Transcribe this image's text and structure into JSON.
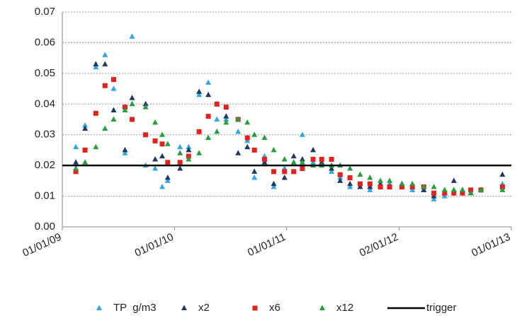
{
  "chart_data": {
    "type": "scatter",
    "xlim": [
      "01/01/09",
      "01/01/13"
    ],
    "xticks": [
      "01/01/09",
      "01/01/10",
      "01/01/11",
      "02/01/12",
      "01/01/13"
    ],
    "ylim": [
      0,
      0.07
    ],
    "yticks": [
      {
        "value": 0,
        "label": "0.00"
      },
      {
        "value": 0.01,
        "label": "0.01"
      },
      {
        "value": 0.02,
        "label": "0.02"
      },
      {
        "value": 0.03,
        "label": "0.03"
      },
      {
        "value": 0.04,
        "label": "0.04"
      },
      {
        "value": 0.05,
        "label": "0.05"
      },
      {
        "value": 0.06,
        "label": "0.06"
      },
      {
        "value": 0.07,
        "label": "0.07"
      }
    ],
    "grid": true,
    "legend": "bottom",
    "series": [
      {
        "name": "TP  g/m3",
        "color": "#2ea8e8",
        "marker": "triangle",
        "x": [
          "14/02/09",
          "16/03/09",
          "20/04/09",
          "20/05/09",
          "17/06/09",
          "24/07/09",
          "16/08/09",
          "29/09/09",
          "30/10/09",
          "22/11/09",
          "10/12/09",
          "19/01/10",
          "16/02/10",
          "22/03/10",
          "21/04/10",
          "19/05/10",
          "18/06/10",
          "27/07/10",
          "26/08/10",
          "18/09/10",
          "21/10/10",
          "20/11/10",
          "25/12/10",
          "24/01/11",
          "21/02/11",
          "28/03/11",
          "25/04/11",
          "27/05/11",
          "24/06/11",
          "26/07/11",
          "28/08/11",
          "29/09/11",
          "02/11/11",
          "02/12/11",
          "11/01/12",
          "14/02/12",
          "22/03/12",
          "24/04/12",
          "29/05/12",
          "28/06/12",
          "26/07/12",
          "22/08/12",
          "24/09/12",
          "03/12/12"
        ],
        "values": [
          0.026,
          0.033,
          0.052,
          0.056,
          0.045,
          0.024,
          0.062,
          0.02,
          0.019,
          0.013,
          0.015,
          0.026,
          0.026,
          0.043,
          0.047,
          0.035,
          0.035,
          0.031,
          0.028,
          0.016,
          0.023,
          0.013,
          0.019,
          0.021,
          0.03,
          0.021,
          0.02,
          0.018,
          0.016,
          0.013,
          0.013,
          0.012,
          0.013,
          0.014,
          0.013,
          0.012,
          0.012,
          0.009,
          0.01,
          0.012,
          0.011,
          0.011,
          0.012,
          0.014
        ]
      },
      {
        "name": "x2",
        "color": "#1f3864",
        "marker": "triangle",
        "x": [
          "14/02/09",
          "16/03/09",
          "20/04/09",
          "20/05/09",
          "17/06/09",
          "24/07/09",
          "16/08/09",
          "29/09/09",
          "30/10/09",
          "22/11/09",
          "10/12/09",
          "19/01/10",
          "16/02/10",
          "22/03/10",
          "21/04/10",
          "19/05/10",
          "18/06/10",
          "27/07/10",
          "26/08/10",
          "18/09/10",
          "21/10/10",
          "20/11/10",
          "25/12/10",
          "24/01/11",
          "21/02/11",
          "28/03/11",
          "25/04/11",
          "27/05/11",
          "24/06/11",
          "26/07/11",
          "28/08/11",
          "29/09/11",
          "02/11/11",
          "02/12/11",
          "11/01/12",
          "14/02/12",
          "22/03/12",
          "24/04/12",
          "29/05/12",
          "28/06/12",
          "26/07/12",
          "22/08/12",
          "24/09/12",
          "03/12/12"
        ],
        "values": [
          0.021,
          0.032,
          0.053,
          0.053,
          0.038,
          0.025,
          0.042,
          0.04,
          0.022,
          0.023,
          0.016,
          0.019,
          0.025,
          0.044,
          0.043,
          0.04,
          0.036,
          0.024,
          0.026,
          0.018,
          0.021,
          0.014,
          0.016,
          0.023,
          0.022,
          0.025,
          0.021,
          0.019,
          0.015,
          0.014,
          0.013,
          0.013,
          0.014,
          0.013,
          0.014,
          0.013,
          0.012,
          0.01,
          0.011,
          0.015,
          0.012,
          0.011,
          0.012,
          0.017
        ]
      },
      {
        "name": "x6",
        "color": "#e8201c",
        "marker": "square",
        "x": [
          "14/02/09",
          "16/03/09",
          "20/04/09",
          "20/05/09",
          "17/06/09",
          "24/07/09",
          "16/08/09",
          "29/09/09",
          "30/10/09",
          "22/11/09",
          "10/12/09",
          "19/01/10",
          "16/02/10",
          "22/03/10",
          "21/04/10",
          "19/05/10",
          "18/06/10",
          "27/07/10",
          "26/08/10",
          "18/09/10",
          "21/10/10",
          "20/11/10",
          "25/12/10",
          "24/01/11",
          "21/02/11",
          "28/03/11",
          "25/04/11",
          "27/05/11",
          "24/06/11",
          "26/07/11",
          "28/08/11",
          "29/09/11",
          "02/11/11",
          "02/12/11",
          "11/01/12",
          "14/02/12",
          "22/03/12",
          "24/04/12",
          "29/05/12",
          "28/06/12",
          "26/07/12",
          "22/08/12",
          "24/09/12",
          "03/12/12"
        ],
        "values": [
          0.018,
          0.025,
          0.037,
          0.046,
          0.048,
          0.039,
          0.035,
          0.03,
          0.028,
          0.027,
          0.021,
          0.021,
          0.023,
          0.031,
          0.036,
          0.04,
          0.039,
          0.035,
          0.029,
          0.025,
          0.022,
          0.018,
          0.018,
          0.018,
          0.019,
          0.022,
          0.022,
          0.022,
          0.017,
          0.016,
          0.014,
          0.014,
          0.013,
          0.013,
          0.013,
          0.013,
          0.013,
          0.011,
          0.011,
          0.011,
          0.011,
          0.012,
          0.012,
          0.013
        ]
      },
      {
        "name": "x12",
        "color": "#23a03c",
        "marker": "triangle",
        "x": [
          "14/02/09",
          "16/03/09",
          "20/04/09",
          "20/05/09",
          "17/06/09",
          "24/07/09",
          "16/08/09",
          "29/09/09",
          "30/10/09",
          "22/11/09",
          "10/12/09",
          "19/01/10",
          "16/02/10",
          "22/03/10",
          "21/04/10",
          "19/05/10",
          "18/06/10",
          "27/07/10",
          "26/08/10",
          "18/09/10",
          "21/10/10",
          "20/11/10",
          "25/12/10",
          "24/01/11",
          "21/02/11",
          "28/03/11",
          "25/04/11",
          "27/05/11",
          "24/06/11",
          "26/07/11",
          "28/08/11",
          "29/09/11",
          "02/11/11",
          "02/12/11",
          "11/01/12",
          "14/02/12",
          "22/03/12",
          "24/04/12",
          "29/05/12",
          "28/06/12",
          "26/07/12",
          "22/08/12",
          "24/09/12",
          "03/12/12"
        ],
        "values": [
          0.019,
          0.021,
          0.026,
          0.032,
          0.035,
          0.038,
          0.04,
          0.039,
          0.034,
          0.03,
          0.027,
          0.024,
          0.022,
          0.024,
          0.029,
          0.031,
          0.034,
          0.035,
          0.034,
          0.03,
          0.029,
          0.025,
          0.022,
          0.021,
          0.021,
          0.02,
          0.02,
          0.02,
          0.02,
          0.019,
          0.017,
          0.016,
          0.015,
          0.015,
          0.014,
          0.014,
          0.013,
          0.013,
          0.012,
          0.012,
          0.012,
          0.011,
          0.012,
          0.012
        ]
      },
      {
        "name": "trigger",
        "color": "#000000",
        "marker": "line",
        "x": [
          "01/01/09",
          "01/01/13"
        ],
        "values": [
          0.02,
          0.02
        ]
      }
    ]
  }
}
